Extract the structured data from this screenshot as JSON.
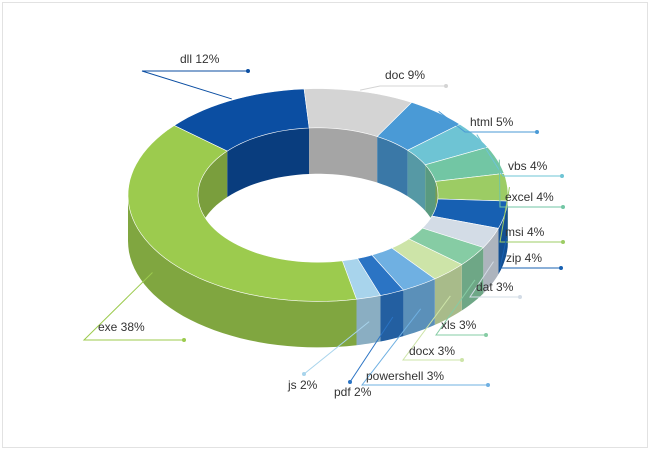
{
  "chart_data": {
    "type": "pie",
    "style": "3d-donut",
    "title": "",
    "legend": "none",
    "slices": [
      {
        "label": "dll 12%",
        "value": 12,
        "color": "#0b4ea2"
      },
      {
        "label": "doc 9%",
        "value": 9,
        "color": "#d4d4d4"
      },
      {
        "label": "html 5%",
        "value": 5,
        "color": "#4a9ad6"
      },
      {
        "label": "vbs 4%",
        "value": 4,
        "color": "#6ec4d4"
      },
      {
        "label": "excel 4%",
        "value": 4,
        "color": "#72c6a4"
      },
      {
        "label": "msi 4%",
        "value": 4,
        "color": "#9ccc64"
      },
      {
        "label": "zip 4%",
        "value": 4,
        "color": "#1760b2"
      },
      {
        "label": "dat 3%",
        "value": 3,
        "color": "#d3dce6"
      },
      {
        "label": "xls 3%",
        "value": 3,
        "color": "#86cca4"
      },
      {
        "label": "docx 3%",
        "value": 3,
        "color": "#cde4a8"
      },
      {
        "label": "powershell 3%",
        "value": 3,
        "color": "#6fb0e2"
      },
      {
        "label": "pdf 2%",
        "value": 2,
        "color": "#2b74c4"
      },
      {
        "label": "js 2%",
        "value": 2,
        "color": "#a8d4ec"
      },
      {
        "label": "exe 38%",
        "value": 38,
        "color": "#9ccb4e"
      }
    ]
  }
}
